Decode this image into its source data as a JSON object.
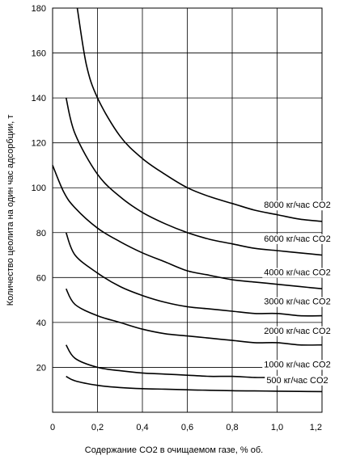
{
  "chart_data": {
    "type": "line",
    "title": "",
    "xlabel": "Содержание CO2 в очищаемом газе, % об.",
    "ylabel": "Количество цеолита на один час адсорбции, т",
    "xlim": [
      0,
      1.2
    ],
    "ylim": [
      0,
      180
    ],
    "x_ticks": [
      "0",
      "0,2",
      "0,4",
      "0,6",
      "0,8",
      "1,0",
      "1,2"
    ],
    "y_ticks": [
      "0",
      "20",
      "40",
      "60",
      "80",
      "100",
      "120",
      "140",
      "160",
      "180"
    ],
    "grid": {
      "x": true,
      "y": true
    },
    "series": [
      {
        "name": "8000 кг/час CO2",
        "x": [
          0.11,
          0.15,
          0.2,
          0.3,
          0.4,
          0.5,
          0.6,
          0.7,
          0.8,
          0.9,
          1.0,
          1.1,
          1.2
        ],
        "y": [
          180,
          155,
          140,
          123,
          113,
          106,
          100,
          96,
          93,
          90,
          88,
          86,
          85
        ]
      },
      {
        "name": "6000 кг/час CO2",
        "x": [
          0.06,
          0.1,
          0.2,
          0.3,
          0.4,
          0.5,
          0.6,
          0.7,
          0.8,
          0.9,
          1.0,
          1.1,
          1.2
        ],
        "y": [
          140,
          124,
          106,
          96,
          89,
          84,
          80,
          77,
          75,
          73,
          72,
          71,
          70
        ]
      },
      {
        "name": "4000 кг/час CO2",
        "x": [
          0.0,
          0.05,
          0.1,
          0.2,
          0.3,
          0.4,
          0.5,
          0.6,
          0.7,
          0.8,
          0.9,
          1.0,
          1.1,
          1.2
        ],
        "y": [
          110,
          98,
          91,
          82,
          76,
          71,
          67,
          63,
          61,
          59,
          58,
          57,
          56,
          55
        ]
      },
      {
        "name": "3000 кг/час CO2",
        "x": [
          0.06,
          0.1,
          0.2,
          0.3,
          0.4,
          0.5,
          0.6,
          0.7,
          0.8,
          0.9,
          1.0,
          1.1,
          1.2
        ],
        "y": [
          80,
          70,
          62,
          56,
          52,
          49,
          47,
          46,
          45,
          44,
          44,
          43,
          43
        ]
      },
      {
        "name": "2000 кг/час CO2",
        "x": [
          0.06,
          0.1,
          0.2,
          0.3,
          0.4,
          0.5,
          0.6,
          0.7,
          0.8,
          0.9,
          1.0,
          1.1,
          1.2
        ],
        "y": [
          55,
          48,
          43,
          40,
          37,
          35,
          34,
          33,
          32,
          31,
          31,
          30,
          30
        ]
      },
      {
        "name": "1000 кг/час CO2",
        "x": [
          0.06,
          0.1,
          0.2,
          0.3,
          0.4,
          0.5,
          0.6,
          0.7,
          0.8,
          0.9,
          1.0,
          1.1,
          1.2
        ],
        "y": [
          30,
          24,
          20,
          18.5,
          17.5,
          17,
          16.5,
          16,
          16,
          15.5,
          15.5,
          15.2,
          15
        ]
      },
      {
        "name": "500 кг/час CO2",
        "x": [
          0.06,
          0.1,
          0.2,
          0.3,
          0.4,
          0.5,
          0.6,
          0.7,
          0.8,
          0.9,
          1.0,
          1.1,
          1.2
        ],
        "y": [
          16,
          14,
          12,
          11,
          10.5,
          10.3,
          10,
          9.8,
          9.6,
          9.5,
          9.4,
          9.3,
          9.2
        ]
      }
    ],
    "series_label_values": [
      {
        "x": 1.09,
        "y": 91
      },
      {
        "x": 1.09,
        "y": 76
      },
      {
        "x": 1.09,
        "y": 61
      },
      {
        "x": 1.09,
        "y": 48
      },
      {
        "x": 1.09,
        "y": 35
      },
      {
        "x": 1.09,
        "y": 20
      },
      {
        "x": 1.09,
        "y": 13
      }
    ]
  }
}
